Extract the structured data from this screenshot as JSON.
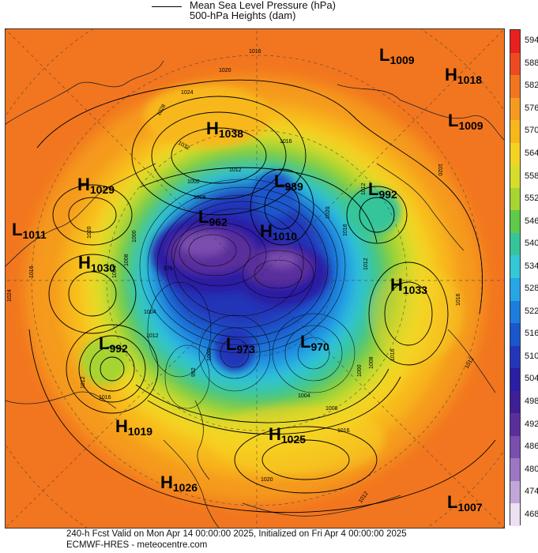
{
  "header": {
    "line1": "Mean Sea Level Pressure (hPa)",
    "line2": "500-hPa Heights (dam)"
  },
  "footer": {
    "line1": "240-h Fcst Valid on Mon Apr 14 00:00:00 2025, Initialized on Fri Apr  4 00:00:00 2025",
    "line2": "ECMWF-HRES  - meteocentre.com"
  },
  "colorbar": {
    "ticks": [
      "594",
      "588",
      "582",
      "576",
      "570",
      "564",
      "558",
      "552",
      "546",
      "540",
      "534",
      "528",
      "522",
      "516",
      "510",
      "504",
      "498",
      "492",
      "486",
      "480",
      "474",
      "468"
    ],
    "colors": [
      "#e8201e",
      "#ee4a22",
      "#f2761f",
      "#f59a1e",
      "#f8b81b",
      "#f5d322",
      "#d6de2a",
      "#a6d431",
      "#5fc94a",
      "#36c59a",
      "#32c8d6",
      "#27a6e6",
      "#1c7ddc",
      "#1a56cc",
      "#2436b8",
      "#2a1fa4",
      "#3f1f96",
      "#5a2f9c",
      "#7a4eae",
      "#9d76c4",
      "#c2a6da",
      "#ece0f2"
    ]
  },
  "systems": [
    {
      "type": "L",
      "value": "1009"
    },
    {
      "type": "H",
      "value": "1018"
    },
    {
      "type": "L",
      "value": "1009"
    },
    {
      "type": "H",
      "value": "1038"
    },
    {
      "type": "H",
      "value": "1029"
    },
    {
      "type": "L",
      "value": "989"
    },
    {
      "type": "L",
      "value": "992"
    },
    {
      "type": "L",
      "value": "1011"
    },
    {
      "type": "L",
      "value": "962"
    },
    {
      "type": "H",
      "value": "1010"
    },
    {
      "type": "H",
      "value": "1030"
    },
    {
      "type": "H",
      "value": "1033"
    },
    {
      "type": "L",
      "value": "992"
    },
    {
      "type": "L",
      "value": "973"
    },
    {
      "type": "L",
      "value": "970"
    },
    {
      "type": "H",
      "value": "1019"
    },
    {
      "type": "H",
      "value": "1025"
    },
    {
      "type": "H",
      "value": "1026"
    },
    {
      "type": "L",
      "value": "1007"
    }
  ],
  "isobar_labels": [
    "1016",
    "1020",
    "1024",
    "1028",
    "1032",
    "1012",
    "1016",
    "1008",
    "1000",
    "1020",
    "1016",
    "1008",
    "1000",
    "976",
    "1024",
    "1012",
    "1020",
    "1016",
    "1012",
    "1004",
    "1012",
    "1016",
    "1012",
    "1000",
    "992",
    "1016",
    "1004",
    "1008",
    "1016",
    "1020",
    "1012",
    "1020",
    "1008",
    "1016",
    "1012",
    "1000",
    "1004"
  ],
  "icons": {
    "legend_line": "isobar-legend-line"
  }
}
